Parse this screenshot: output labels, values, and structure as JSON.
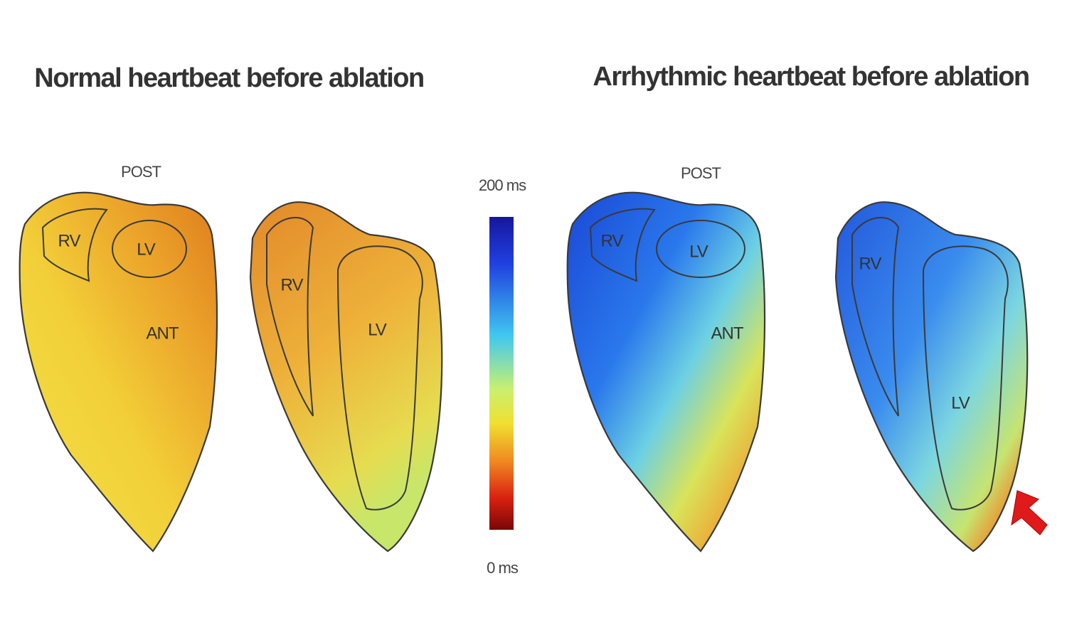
{
  "panels": [
    {
      "title": "Normal heartbeat before ablation",
      "post": "POST",
      "ant": "ANT",
      "front_rv": "RV",
      "front_lv": "LV",
      "side_rv": "RV",
      "side_lv": "LV"
    },
    {
      "title": "Arrhythmic heartbeat before ablation",
      "post": "POST",
      "ant": "ANT",
      "front_rv": "RV",
      "front_lv": "LV",
      "side_rv": "RV",
      "side_lv": "LV"
    }
  ],
  "colorbar": {
    "max_label": "200 ms",
    "min_label": "0 ms"
  }
}
